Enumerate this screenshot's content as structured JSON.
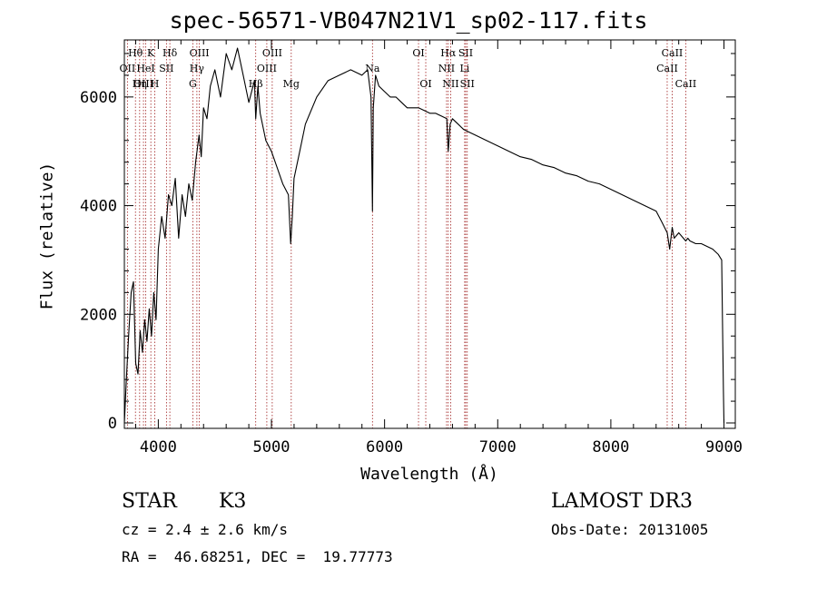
{
  "chart_data": {
    "type": "line",
    "title": "spec-56571-VB047N21V1_sp02-117.fits",
    "xlabel": "Wavelength (Å)",
    "ylabel": "Flux (relative)",
    "xlim": [
      3700,
      9100
    ],
    "ylim": [
      -100,
      7050
    ],
    "xticks": [
      4000,
      5000,
      6000,
      7000,
      8000,
      9000
    ],
    "yticks": [
      0,
      2000,
      4000,
      6000
    ],
    "series": [
      {
        "name": "flux",
        "x": [
          3700,
          3720,
          3740,
          3760,
          3780,
          3800,
          3820,
          3840,
          3860,
          3880,
          3900,
          3920,
          3940,
          3960,
          3980,
          4000,
          4030,
          4060,
          4090,
          4120,
          4150,
          4180,
          4210,
          4240,
          4270,
          4300,
          4330,
          4360,
          4380,
          4400,
          4430,
          4460,
          4500,
          4550,
          4600,
          4650,
          4700,
          4750,
          4800,
          4850,
          4861,
          4880,
          4900,
          4950,
          5000,
          5050,
          5100,
          5150,
          5170,
          5184,
          5200,
          5250,
          5300,
          5400,
          5500,
          5600,
          5700,
          5800,
          5850,
          5880,
          5893,
          5900,
          5920,
          5950,
          6000,
          6050,
          6100,
          6150,
          6200,
          6250,
          6300,
          6350,
          6400,
          6450,
          6500,
          6550,
          6563,
          6580,
          6600,
          6650,
          6700,
          6750,
          6800,
          6850,
          6900,
          7000,
          7100,
          7200,
          7300,
          7400,
          7500,
          7600,
          7700,
          7800,
          7900,
          8000,
          8100,
          8200,
          8300,
          8400,
          8450,
          8498,
          8520,
          8542,
          8560,
          8600,
          8662,
          8680,
          8700,
          8750,
          8800,
          8850,
          8900,
          8950,
          8980,
          8995,
          9000
        ],
        "values": [
          0,
          900,
          1700,
          2400,
          2600,
          1100,
          900,
          1700,
          1300,
          1900,
          1500,
          2100,
          1600,
          2400,
          1900,
          3200,
          3800,
          3400,
          4200,
          4000,
          4500,
          3400,
          4200,
          3800,
          4400,
          4100,
          4800,
          5300,
          4900,
          5800,
          5600,
          6200,
          6500,
          6000,
          6800,
          6500,
          6900,
          6400,
          5900,
          6300,
          5600,
          6200,
          5700,
          5200,
          5000,
          4700,
          4400,
          4200,
          3300,
          3800,
          4500,
          5000,
          5500,
          6000,
          6300,
          6400,
          6500,
          6400,
          6500,
          6000,
          3900,
          5800,
          6400,
          6200,
          6100,
          6000,
          6000,
          5900,
          5800,
          5800,
          5800,
          5750,
          5700,
          5700,
          5650,
          5600,
          5000,
          5500,
          5600,
          5500,
          5400,
          5350,
          5300,
          5250,
          5200,
          5100,
          5000,
          4900,
          4850,
          4750,
          4700,
          4600,
          4550,
          4450,
          4400,
          4300,
          4200,
          4100,
          4000,
          3900,
          3700,
          3500,
          3200,
          3600,
          3400,
          3500,
          3350,
          3400,
          3350,
          3300,
          3300,
          3250,
          3200,
          3100,
          3000,
          600,
          0
        ]
      }
    ],
    "lines": [
      {
        "label": "Hθ",
        "wave": 3798,
        "row": 1
      },
      {
        "label": "OII",
        "wave": 3727,
        "row": 2
      },
      {
        "label": "OIII",
        "wave": 3869,
        "row": 3
      },
      {
        "label": "K",
        "wave": 3934,
        "row": 1
      },
      {
        "label": "HeI",
        "wave": 3889,
        "row": 2
      },
      {
        "label": "Hη",
        "wave": 3835,
        "row": 3
      },
      {
        "label": "Hδ",
        "wave": 4102,
        "row": 1
      },
      {
        "label": "SII",
        "wave": 4072,
        "row": 2
      },
      {
        "label": "H",
        "wave": 3969,
        "row": 3
      },
      {
        "label": "OIII",
        "wave": 4363,
        "row": 1
      },
      {
        "label": "Hγ",
        "wave": 4341,
        "row": 2
      },
      {
        "label": "G",
        "wave": 4305,
        "row": 3
      },
      {
        "label": "OIII",
        "wave": 5007,
        "row": 1
      },
      {
        "label": "OIII",
        "wave": 4959,
        "row": 2
      },
      {
        "label": "Hβ",
        "wave": 4861,
        "row": 3
      },
      {
        "label": "Mg",
        "wave": 5175,
        "row": 3
      },
      {
        "label": "Na",
        "wave": 5893,
        "row": 2
      },
      {
        "label": "OI",
        "wave": 6300,
        "row": 1
      },
      {
        "label": "OI",
        "wave": 6364,
        "row": 3
      },
      {
        "label": "Hα",
        "wave": 6563,
        "row": 1
      },
      {
        "label": "NII",
        "wave": 6548,
        "row": 2
      },
      {
        "label": "NII",
        "wave": 6584,
        "row": 3
      },
      {
        "label": "SII",
        "wave": 6717,
        "row": 1
      },
      {
        "label": "Li",
        "wave": 6708,
        "row": 2
      },
      {
        "label": "SII",
        "wave": 6731,
        "row": 3
      },
      {
        "label": "CaII",
        "wave": 8542,
        "row": 1
      },
      {
        "label": "CaII",
        "wave": 8498,
        "row": 2
      },
      {
        "label": "CaII",
        "wave": 8662,
        "row": 3
      }
    ]
  },
  "info": {
    "object_class": "STAR",
    "subclass": "K3",
    "survey": "LAMOST DR3",
    "redshift": "cz = 2.4 ± 2.6 km/s",
    "obs_date": "Obs-Date: 20131005",
    "coords": "RA =  46.68251, DEC =  19.77773"
  },
  "colors": {
    "axis": "#000000",
    "spectrum": "#000000",
    "marker": "#a02020"
  }
}
